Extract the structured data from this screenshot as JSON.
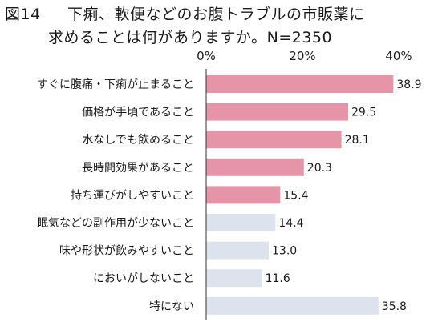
{
  "title": {
    "figure_label": "図14",
    "line1": "下痢、軟便などのお腹トラブルの市販薬に",
    "line2": "求めることは何がありますか。N=2350"
  },
  "colors": {
    "highlight": "#e694a8",
    "normal": "#dde3ed",
    "axis": "#333333"
  },
  "chart_data": {
    "type": "bar",
    "orientation": "horizontal",
    "title": "下痢、軟便などのお腹トラブルの市販薬に求めることは何がありますか。N=2350",
    "categories": [
      "すぐに腹痛・下痢が止まること",
      "価格が手頃であること",
      "水なしでも飲めること",
      "長時間効果があること",
      "持ち運びがしやすいこと",
      "眠気などの副作用が少ないこと",
      "味や形状が飲みやすいこと",
      "においがしないこと",
      "特にない"
    ],
    "values": [
      38.9,
      29.5,
      28.1,
      20.3,
      15.4,
      14.4,
      13.0,
      11.6,
      35.8
    ],
    "value_labels": [
      "38.9",
      "29.5",
      "28.1",
      "20.3",
      "15.4",
      "14.4",
      "13.0",
      "11.6",
      "35.8"
    ],
    "highlighted": [
      true,
      true,
      true,
      true,
      true,
      false,
      false,
      false,
      false
    ],
    "xlim": [
      0,
      40
    ],
    "ticks": [
      "0%",
      "20%",
      "40%"
    ],
    "tick_values": [
      0,
      20,
      40
    ],
    "unit": "%",
    "grid": false,
    "legend": "none"
  }
}
